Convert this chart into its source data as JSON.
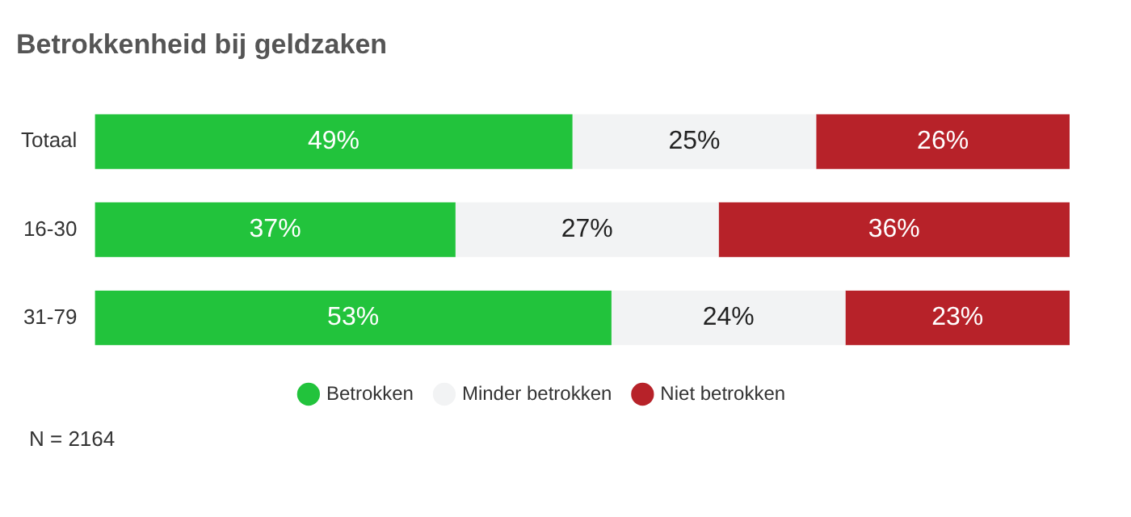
{
  "chart_data": {
    "type": "bar",
    "orientation": "horizontal",
    "stacked": true,
    "title": "Betrokkenheid bij geldzaken",
    "categories": [
      "Totaal",
      "16-30",
      "31-79"
    ],
    "xlim": [
      0,
      100
    ],
    "tick_labels": "y",
    "grid": false,
    "legend": "bottom",
    "series": [
      {
        "name": "Betrokken",
        "color": "#22c33c",
        "values": [
          49,
          37,
          53
        ],
        "value_labels": [
          "49%",
          "37%",
          "53%"
        ]
      },
      {
        "name": "Minder betrokken",
        "color": "#f2f3f4",
        "values": [
          25,
          27,
          24
        ],
        "value_labels": [
          "25%",
          "27%",
          "24%"
        ]
      },
      {
        "name": "Niet betrokken",
        "color": "#b72229",
        "values": [
          26,
          36,
          23
        ],
        "value_labels": [
          "26%",
          "36%",
          "23%"
        ]
      }
    ],
    "annotations": [
      "N = 2164"
    ]
  }
}
